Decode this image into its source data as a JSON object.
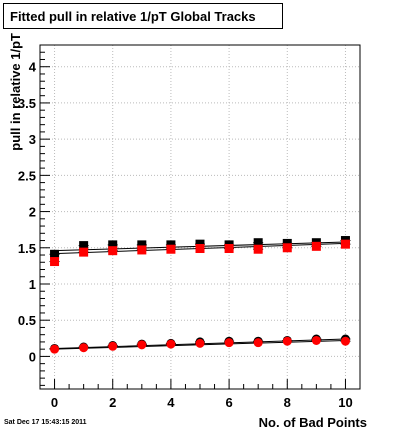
{
  "title": "Fitted pull in relative 1/pT  Global Tracks",
  "timestamp": "Sat Dec 17 15:43:15 2011",
  "chart_data": {
    "type": "scatter",
    "title": "Fitted pull in relative 1/pT  Global Tracks",
    "xlabel": "No. of Bad Points",
    "ylabel": "pull in relative 1/pT",
    "xlim": [
      -0.5,
      10.5
    ],
    "ylim": [
      -0.45,
      4.3
    ],
    "xticks": [
      "0",
      "2",
      "4",
      "6",
      "8",
      "10"
    ],
    "yticks": [
      "0",
      "0.5",
      "1",
      "1.5",
      "2",
      "2.5",
      "3",
      "3.5",
      "4"
    ],
    "grid": true,
    "legend": "none",
    "series": [
      {
        "marker": "square",
        "color": "#000000",
        "x": [
          0,
          1,
          2,
          3,
          4,
          5,
          6,
          7,
          8,
          9,
          10
        ],
        "y": [
          1.41,
          1.53,
          1.54,
          1.54,
          1.54,
          1.55,
          1.54,
          1.57,
          1.56,
          1.57,
          1.6
        ],
        "fit": [
          1.46,
          1.58
        ]
      },
      {
        "marker": "square",
        "color": "#ff0000",
        "x": [
          0,
          1,
          2,
          3,
          4,
          5,
          6,
          7,
          8,
          9,
          10
        ],
        "y": [
          1.31,
          1.44,
          1.46,
          1.47,
          1.48,
          1.49,
          1.49,
          1.48,
          1.5,
          1.52,
          1.55
        ],
        "fit": [
          1.42,
          1.56
        ]
      },
      {
        "marker": "circle",
        "color": "#000000",
        "x": [
          0,
          1,
          2,
          3,
          4,
          5,
          6,
          7,
          8,
          9,
          10
        ],
        "y": [
          0.11,
          0.13,
          0.15,
          0.17,
          0.18,
          0.2,
          0.21,
          0.21,
          0.22,
          0.24,
          0.24
        ],
        "fit": [
          0.11,
          0.24
        ]
      },
      {
        "marker": "circle",
        "color": "#ff0000",
        "x": [
          0,
          1,
          2,
          3,
          4,
          5,
          6,
          7,
          8,
          9,
          10
        ],
        "y": [
          0.1,
          0.12,
          0.14,
          0.16,
          0.17,
          0.18,
          0.19,
          0.19,
          0.21,
          0.22,
          0.21
        ],
        "fit": [
          0.1,
          0.22
        ]
      }
    ]
  }
}
